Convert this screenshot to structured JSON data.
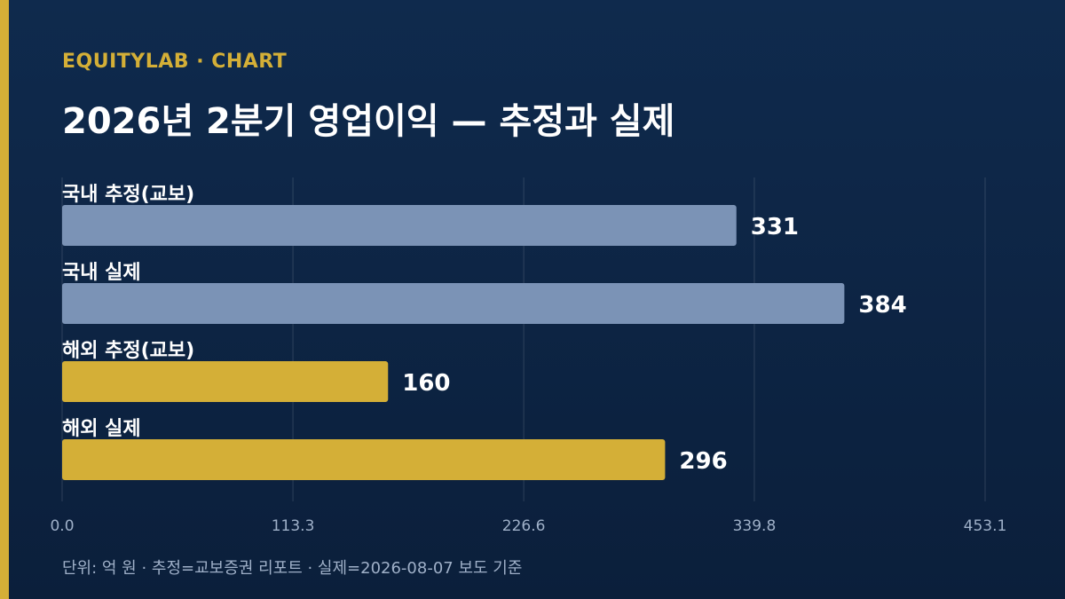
{
  "header": {
    "brand": "EQUITYLAB · CHART",
    "title": "2026년 2분기 영업이익 — 추정과 실제"
  },
  "footer": {
    "note": "단위: 억 원 · 추정=교보증권 리포트 · 실제=2026-08-07 보도 기준"
  },
  "colors": {
    "background_top": "#0f2a4d",
    "background_bottom": "#0b1f3b",
    "accent": "#d4af37",
    "domestic": "#7b93b6",
    "overseas": "#d4af37"
  },
  "chart_data": {
    "type": "bar",
    "orientation": "horizontal",
    "categories": [
      "국내 추정(교보)",
      "국내 실제",
      "해외 추정(교보)",
      "해외 실제"
    ],
    "values": [
      331,
      384,
      160,
      296
    ],
    "bar_colors": [
      "#7b93b6",
      "#7b93b6",
      "#d4af37",
      "#d4af37"
    ],
    "xlim": [
      0,
      453.1
    ],
    "x_ticks": [
      "0.0",
      "113.3",
      "226.6",
      "339.8",
      "453.1"
    ],
    "grid": true
  }
}
